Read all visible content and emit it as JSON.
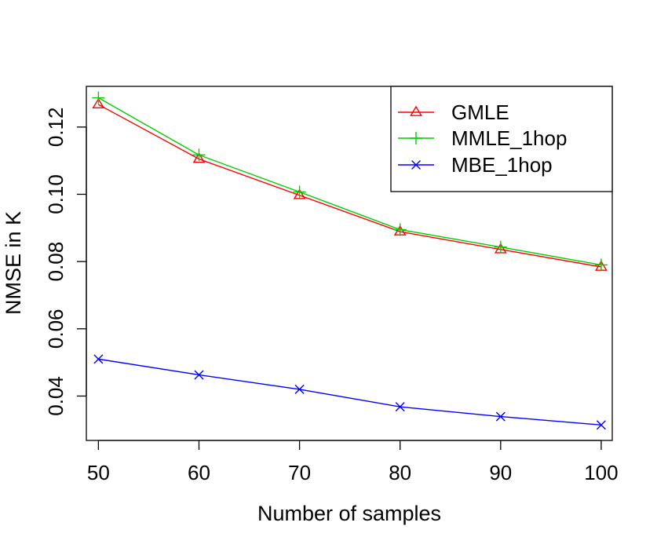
{
  "chart_data": {
    "type": "line",
    "title": "",
    "xlabel": "Number of samples",
    "ylabel": "NMSE in K",
    "x": [
      50,
      60,
      70,
      80,
      90,
      100
    ],
    "xticks": [
      "50",
      "60",
      "70",
      "80",
      "90",
      "100"
    ],
    "yticks": [
      "0.04",
      "0.06",
      "0.08",
      "0.10",
      "0.12"
    ],
    "ytick_values": [
      0.04,
      0.06,
      0.08,
      0.1,
      0.12
    ],
    "xlim": [
      48.8,
      101.1
    ],
    "ylim": [
      0.0268,
      0.1321
    ],
    "legend_position": "top-right",
    "series": [
      {
        "name": "GMLE",
        "color": "#ff0000",
        "marker": "triangle",
        "values": [
          0.1267,
          0.1105,
          0.0997,
          0.0889,
          0.0836,
          0.0784
        ]
      },
      {
        "name": "MMLE_1hop",
        "color": "#00cd00",
        "marker": "plus",
        "values": [
          0.1287,
          0.1117,
          0.1007,
          0.0895,
          0.0843,
          0.079
        ]
      },
      {
        "name": "MBE_1hop",
        "color": "#0000ff",
        "marker": "cross",
        "values": [
          0.051,
          0.0463,
          0.042,
          0.0368,
          0.0339,
          0.0314
        ]
      }
    ]
  }
}
